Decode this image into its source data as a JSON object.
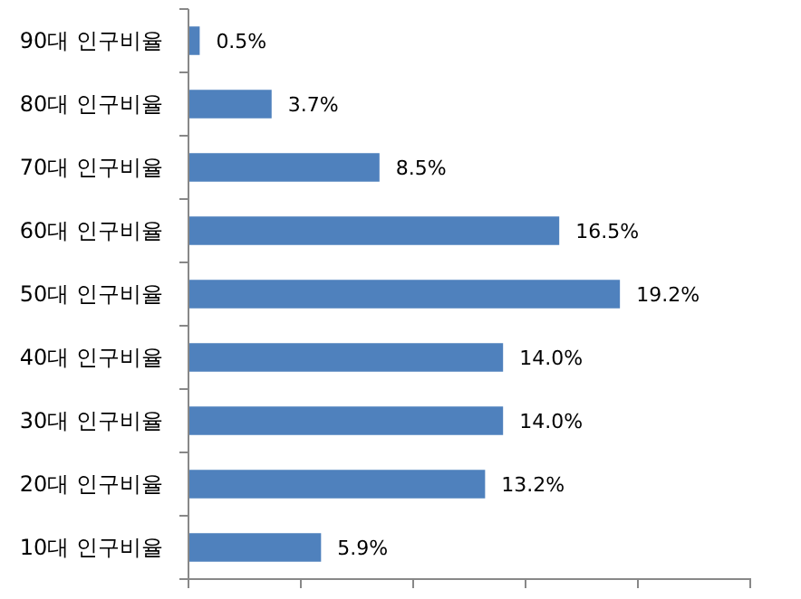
{
  "chart_data": {
    "type": "bar",
    "orientation": "horizontal",
    "categories": [
      "90대 인구비율",
      "80대 인구비율",
      "70대 인구비율",
      "60대 인구비율",
      "50대 인구비율",
      "40대 인구비율",
      "30대 인구비율",
      "20대 인구비율",
      "10대 인구비율"
    ],
    "values": [
      0.5,
      3.7,
      8.5,
      16.5,
      19.2,
      14.0,
      14.0,
      13.2,
      5.9
    ],
    "value_labels": [
      "0.5%",
      "3.7%",
      "8.5%",
      "16.5%",
      "19.2%",
      "14.0%",
      "14.0%",
      "13.2%",
      "5.9%"
    ],
    "color": "#4f81bd",
    "xlim": [
      0,
      25
    ],
    "xticks": [
      {
        "value": 0,
        "label": null
      },
      {
        "value": 5,
        "label": null
      },
      {
        "value": 10,
        "label": null
      },
      {
        "value": 15,
        "label": null
      },
      {
        "value": 20,
        "label": null
      },
      {
        "value": 25,
        "label": null
      }
    ],
    "tick_labels": "y"
  }
}
